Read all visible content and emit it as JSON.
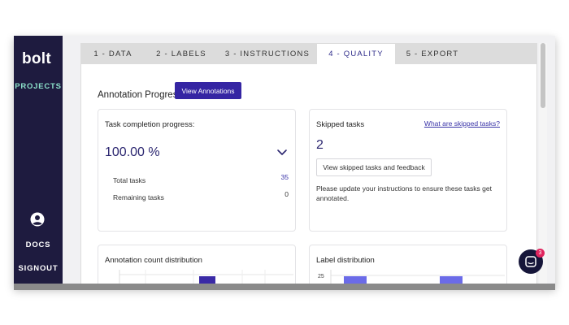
{
  "sidebar": {
    "logo": "bolt",
    "projects": "PROJECTS",
    "docs": "DOCS",
    "signout": "SIGNOUT"
  },
  "tabs": [
    {
      "label": "1 - DATA"
    },
    {
      "label": "2 - LABELS"
    },
    {
      "label": "3 - INSTRUCTIONS"
    },
    {
      "label": "4 - QUALITY",
      "active": true
    },
    {
      "label": "5 - EXPORT"
    }
  ],
  "annotation": {
    "title": "Annotation Progress",
    "view_button": "View Annotations"
  },
  "progress_card": {
    "title": "Task completion progress:",
    "value": "100.00 %",
    "total_label": "Total tasks",
    "total_value": "35",
    "remaining_label": "Remaining tasks",
    "remaining_value": "0"
  },
  "skipped_card": {
    "title": "Skipped tasks",
    "link": "What are skipped tasks?",
    "count": "2",
    "button": "View skipped tasks and feedback",
    "note": "Please update your instructions to ensure these tasks get annotated."
  },
  "count_card": {
    "title": "Annotation count distribution"
  },
  "label_card": {
    "title": "Label distribution",
    "axis_tick": "25"
  },
  "chat": {
    "badge": "3"
  },
  "colors": {
    "sidebar_bg": "#1e1b3f",
    "accent": "#3525a3",
    "projects_active": "#8be0c9",
    "bar_dark": "#3a2aa6",
    "bar_light": "#6b6be8",
    "badge": "#e0245e"
  }
}
